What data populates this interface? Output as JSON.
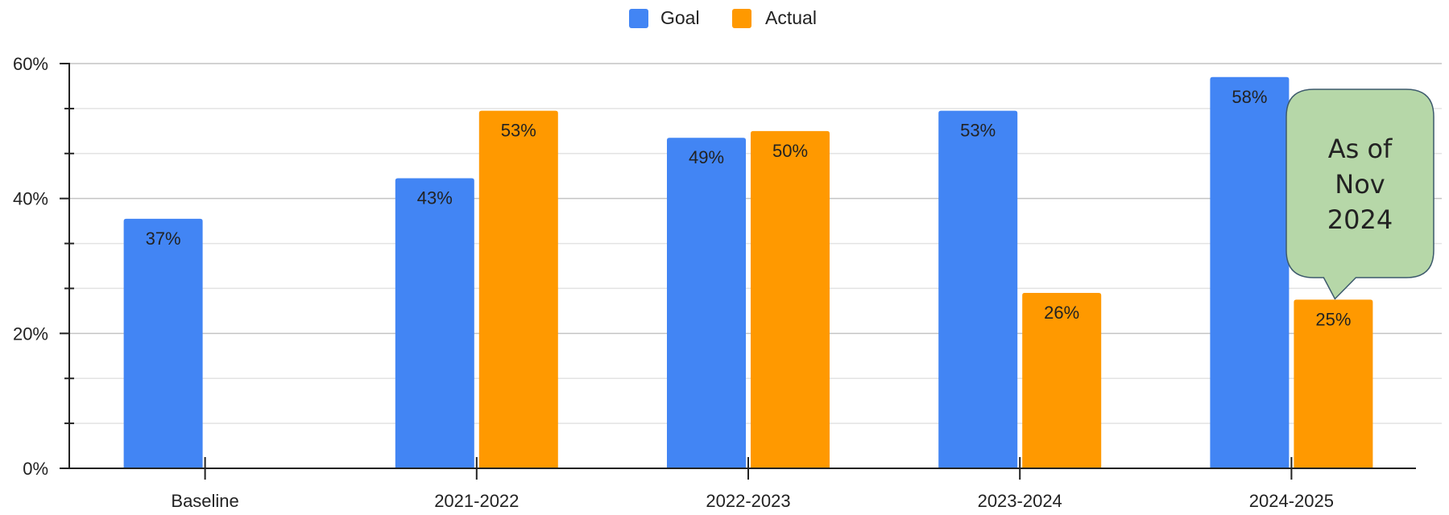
{
  "chart_data": {
    "type": "bar",
    "categories": [
      "Baseline",
      "2021-2022",
      "2022-2023",
      "2023-2024",
      "2024-2025"
    ],
    "series": [
      {
        "name": "Goal",
        "color": "#4285f4",
        "values": [
          37,
          43,
          49,
          53,
          58
        ]
      },
      {
        "name": "Actual",
        "color": "#ff9900",
        "values": [
          null,
          53,
          50,
          26,
          25
        ]
      }
    ],
    "data_labels": {
      "Goal": [
        "37%",
        "43%",
        "49%",
        "53%",
        "58%"
      ],
      "Actual": [
        "",
        "53%",
        "50%",
        "26%",
        "25%"
      ]
    },
    "ylim": [
      0,
      60
    ],
    "yticks": [
      0,
      20,
      40,
      60
    ],
    "ytick_labels": [
      "0%",
      "20%",
      "40%",
      "60%"
    ],
    "y_minor_gridlines": [
      6.67,
      13.33,
      26.67,
      33.33,
      46.67,
      53.33
    ],
    "grid": true,
    "legend_position": "top-center",
    "xlabel": "",
    "ylabel": "",
    "title": "",
    "annotation": {
      "lines": [
        "As of",
        "Nov",
        "2024"
      ],
      "category": "2024-2025",
      "series": "Actual",
      "fill": "#b6d7a8",
      "stroke": "#3d5a6c"
    }
  }
}
